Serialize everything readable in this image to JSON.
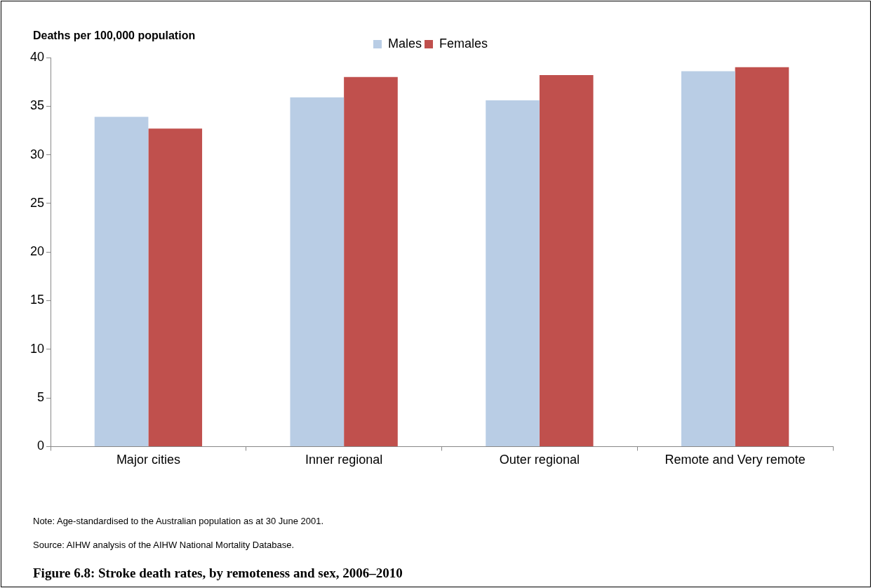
{
  "chart_data": {
    "type": "bar",
    "title": "Figure 6.8: Stroke death rates, by remoteness and sex, 2006–2010",
    "ylabel": "Deaths per 100,000 population",
    "categories": [
      "Major cities",
      "Inner regional",
      "Outer regional",
      "Remote and Very remote"
    ],
    "series": [
      {
        "name": "Males",
        "color": "#b9cde5",
        "values": [
          33.9,
          35.9,
          35.6,
          38.6
        ]
      },
      {
        "name": "Females",
        "color": "#c0504d",
        "values": [
          32.7,
          38.0,
          38.2,
          39.0
        ]
      }
    ],
    "ylim": [
      0,
      40
    ],
    "yticks": [
      0,
      5,
      10,
      15,
      20,
      25,
      30,
      35,
      40
    ],
    "grid": false,
    "legend": "top",
    "annotations": [
      "Note: Age-standardised to the Australian population as at 30 June 2001.",
      "Source: AIHW analysis of the AIHW National Mortality Database."
    ]
  }
}
